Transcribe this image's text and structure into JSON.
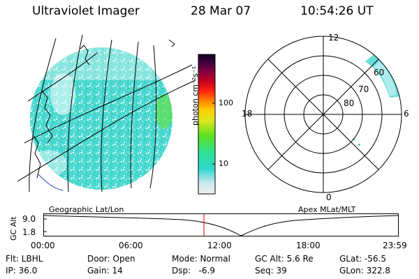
{
  "header": {
    "title": "Ultraviolet Imager",
    "date": "28 Mar 07",
    "time": "10:54:26 UT"
  },
  "colorbar": {
    "unit_label": "photon cm⁻²s⁻¹",
    "ticks": [
      "100",
      "10"
    ],
    "colors": [
      "#f0f0f0",
      "#c8e8ec",
      "#30d8d0",
      "#30e090",
      "#60e020",
      "#d8e820",
      "#ffd000",
      "#ff8000",
      "#ff2010",
      "#c00020",
      "#800040",
      "#400040",
      "#100020"
    ]
  },
  "polar_plot": {
    "mlt_labels": [
      "12",
      "18",
      "6",
      "0"
    ],
    "lat_labels": [
      "60",
      "70",
      "80"
    ]
  },
  "map_labels": {
    "left": "Geographic Lat/Lon",
    "right": "Apex MLat/MLT"
  },
  "altitude_plot": {
    "ylabel": "GC Alt",
    "yticks": [
      "9.0",
      "1.8"
    ],
    "xticks": [
      "00:00",
      "06:00",
      "12:00",
      "18:00",
      "23:59"
    ],
    "marker_time": "10:54"
  },
  "info": {
    "flt": "Flt: LBHL",
    "ip": "IP: 36.0",
    "door": "Door: Open",
    "gain": "Gain: 14",
    "mode": "Mode: Normal",
    "dsp": "Dsp:   -6.9",
    "gc_alt": "GC Alt: 5.6 Re",
    "seq": "Seq: 39",
    "glat": "GLat: -56.5",
    "glon": "GLon: 322.8"
  }
}
